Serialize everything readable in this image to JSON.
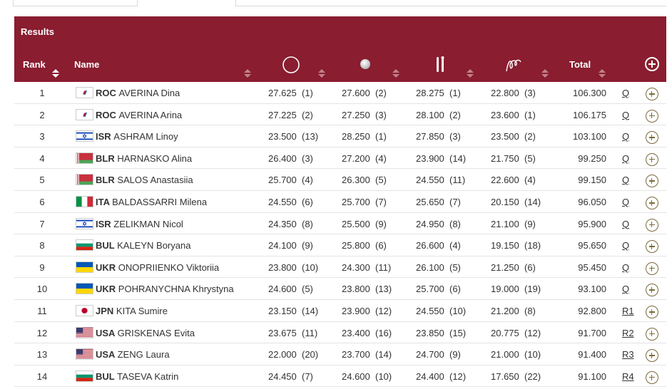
{
  "header": {
    "title": "Results",
    "columns": {
      "rank": "Rank",
      "name": "Name",
      "total": "Total"
    },
    "apparatus_icons": [
      "hoop-icon",
      "ball-icon",
      "clubs-icon",
      "ribbon-icon"
    ]
  },
  "colors": {
    "header_bg": "#8a1d30",
    "expand_icon": "#7a6a3a"
  },
  "rows": [
    {
      "rank": "1",
      "flag": "roc",
      "noc": "ROC",
      "name": "AVERINA Dina",
      "s1": "27.625",
      "r1": "(1)",
      "s2": "27.600",
      "r2": "(2)",
      "s3": "28.275",
      "r3": "(1)",
      "s4": "22.800",
      "r4": "(3)",
      "total": "106.300",
      "q": "Q"
    },
    {
      "rank": "2",
      "flag": "roc",
      "noc": "ROC",
      "name": "AVERINA Arina",
      "s1": "27.225",
      "r1": "(2)",
      "s2": "27.250",
      "r2": "(3)",
      "s3": "28.100",
      "r3": "(2)",
      "s4": "23.600",
      "r4": "(1)",
      "total": "106.175",
      "q": "Q"
    },
    {
      "rank": "3",
      "flag": "isr",
      "noc": "ISR",
      "name": "ASHRAM Linoy",
      "s1": "23.500",
      "r1": "(13)",
      "s2": "28.250",
      "r2": "(1)",
      "s3": "27.850",
      "r3": "(3)",
      "s4": "23.500",
      "r4": "(2)",
      "total": "103.100",
      "q": "Q"
    },
    {
      "rank": "4",
      "flag": "blr",
      "noc": "BLR",
      "name": "HARNASKO Alina",
      "s1": "26.400",
      "r1": "(3)",
      "s2": "27.200",
      "r2": "(4)",
      "s3": "23.900",
      "r3": "(14)",
      "s4": "21.750",
      "r4": "(5)",
      "total": "99.250",
      "q": "Q"
    },
    {
      "rank": "5",
      "flag": "blr",
      "noc": "BLR",
      "name": "SALOS Anastasiia",
      "s1": "25.700",
      "r1": "(4)",
      "s2": "26.300",
      "r2": "(5)",
      "s3": "24.550",
      "r3": "(11)",
      "s4": "22.600",
      "r4": "(4)",
      "total": "99.150",
      "q": "Q"
    },
    {
      "rank": "6",
      "flag": "ita",
      "noc": "ITA",
      "name": "BALDASSARRI Milena",
      "s1": "24.550",
      "r1": "(6)",
      "s2": "25.700",
      "r2": "(7)",
      "s3": "25.650",
      "r3": "(7)",
      "s4": "20.150",
      "r4": "(14)",
      "total": "96.050",
      "q": "Q"
    },
    {
      "rank": "7",
      "flag": "isr",
      "noc": "ISR",
      "name": "ZELIKMAN Nicol",
      "s1": "24.350",
      "r1": "(8)",
      "s2": "25.500",
      "r2": "(9)",
      "s3": "24.950",
      "r3": "(8)",
      "s4": "21.100",
      "r4": "(9)",
      "total": "95.900",
      "q": "Q"
    },
    {
      "rank": "8",
      "flag": "bul",
      "noc": "BUL",
      "name": "KALEYN Boryana",
      "s1": "24.100",
      "r1": "(9)",
      "s2": "25.800",
      "r2": "(6)",
      "s3": "26.600",
      "r3": "(4)",
      "s4": "19.150",
      "r4": "(18)",
      "total": "95.650",
      "q": "Q"
    },
    {
      "rank": "9",
      "flag": "ukr",
      "noc": "UKR",
      "name": "ONOPRIIENKO Viktoriia",
      "s1": "23.800",
      "r1": "(10)",
      "s2": "24.300",
      "r2": "(11)",
      "s3": "26.100",
      "r3": "(5)",
      "s4": "21.250",
      "r4": "(6)",
      "total": "95.450",
      "q": "Q"
    },
    {
      "rank": "10",
      "flag": "ukr",
      "noc": "UKR",
      "name": "POHRANYCHNA Khrystyna",
      "s1": "24.600",
      "r1": "(5)",
      "s2": "23.800",
      "r2": "(13)",
      "s3": "25.700",
      "r3": "(6)",
      "s4": "19.000",
      "r4": "(19)",
      "total": "93.100",
      "q": "Q"
    },
    {
      "rank": "11",
      "flag": "jpn",
      "noc": "JPN",
      "name": "KITA Sumire",
      "s1": "23.150",
      "r1": "(14)",
      "s2": "23.900",
      "r2": "(12)",
      "s3": "24.550",
      "r3": "(10)",
      "s4": "21.200",
      "r4": "(8)",
      "total": "92.800",
      "q": "R1"
    },
    {
      "rank": "12",
      "flag": "usa",
      "noc": "USA",
      "name": "GRISKENAS Evita",
      "s1": "23.675",
      "r1": "(11)",
      "s2": "23.400",
      "r2": "(16)",
      "s3": "23.850",
      "r3": "(15)",
      "s4": "20.775",
      "r4": "(12)",
      "total": "91.700",
      "q": "R2"
    },
    {
      "rank": "13",
      "flag": "usa",
      "noc": "USA",
      "name": "ZENG Laura",
      "s1": "22.000",
      "r1": "(20)",
      "s2": "23.700",
      "r2": "(14)",
      "s3": "24.700",
      "r3": "(9)",
      "s4": "21.000",
      "r4": "(10)",
      "total": "91.400",
      "q": "R3"
    },
    {
      "rank": "14",
      "flag": "bul",
      "noc": "BUL",
      "name": "TASEVA Katrin",
      "s1": "24.450",
      "r1": "(7)",
      "s2": "24.600",
      "r2": "(10)",
      "s3": "24.400",
      "r3": "(12)",
      "s4": "17.650",
      "r4": "(22)",
      "total": "91.100",
      "q": "R4"
    }
  ]
}
